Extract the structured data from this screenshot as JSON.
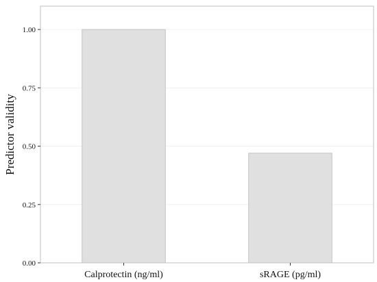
{
  "chart_data": {
    "type": "bar",
    "title": "",
    "xlabel": "",
    "ylabel": "Predictor validity",
    "categories": [
      "Calprotectin (ng/ml)",
      "sRAGE (pg/ml)"
    ],
    "values": [
      1.0,
      0.47
    ],
    "ylim": [
      0,
      1.1
    ],
    "yticks": [
      "0.00",
      "0.25",
      "0.50",
      "0.75",
      "1.00"
    ],
    "grid": true,
    "bar_color": "#e0e0e0",
    "bar_edge_color": "#c4c4c4",
    "frame_color": "#bfbfbf",
    "grid_color": "#f0f0f0"
  }
}
